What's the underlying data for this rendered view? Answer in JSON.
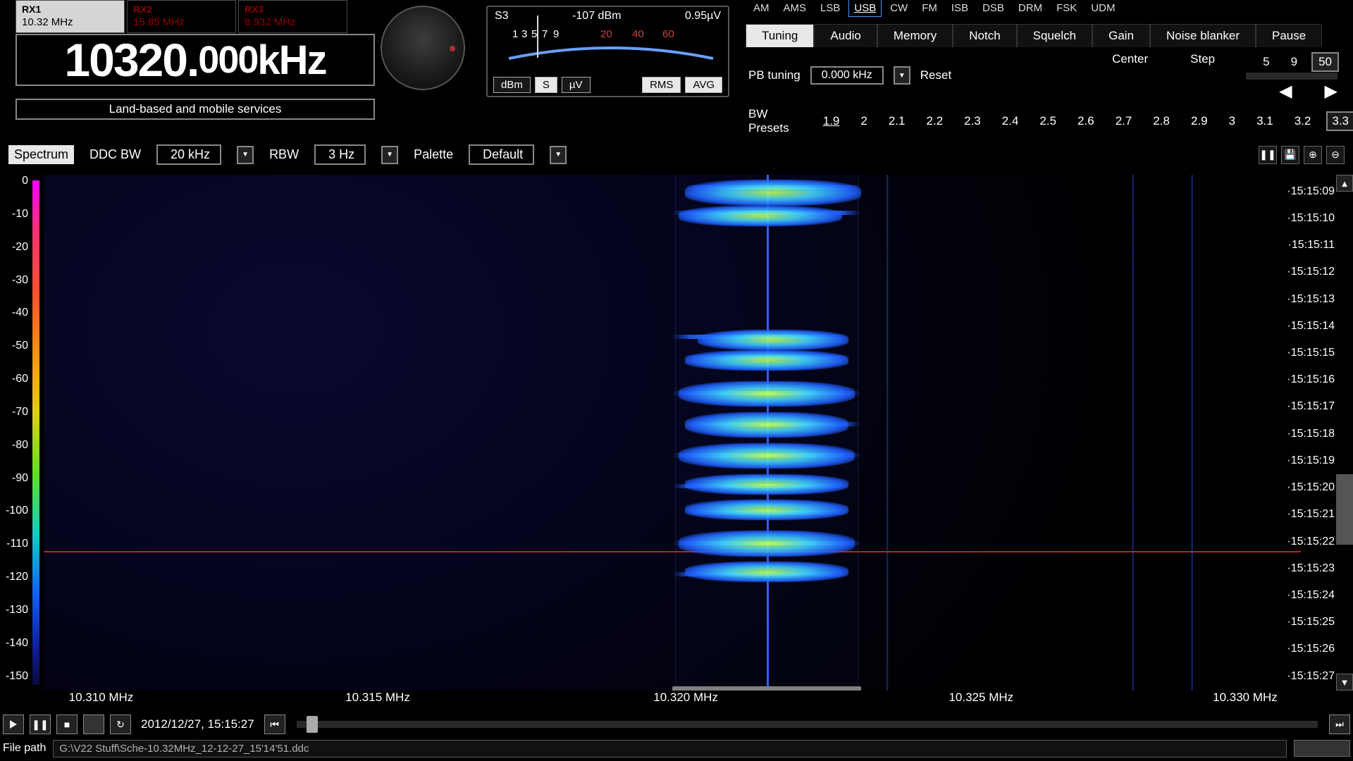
{
  "rx_tabs": [
    {
      "name": "RX1",
      "freq": "10.32 MHz",
      "active": true,
      "red": false
    },
    {
      "name": "RX2",
      "freq": "15.85 MHz",
      "active": false,
      "red": true
    },
    {
      "name": "RX3",
      "freq": "8.932 MHz",
      "active": false,
      "red": true
    }
  ],
  "frequency": {
    "value": "10320.",
    "sub": "000",
    "unit": "kHz"
  },
  "service_label": "Land-based and mobile services",
  "smeter": {
    "s_label": "S3",
    "dbm": "-107 dBm",
    "uv": "0.95µV",
    "ticks_white": [
      "1",
      "3",
      "5",
      "7",
      "9"
    ],
    "ticks_red": [
      "20",
      "40",
      "60"
    ],
    "btns": [
      {
        "t": "dBm",
        "on": false
      },
      {
        "t": "S",
        "on": true
      },
      {
        "t": "µV",
        "on": false
      },
      {
        "t": "RMS",
        "on": true
      },
      {
        "t": "AVG",
        "on": true
      }
    ]
  },
  "modes": [
    "AM",
    "AMS",
    "LSB",
    "USB",
    "CW",
    "FM",
    "ISB",
    "DSB",
    "DRM",
    "FSK",
    "UDM"
  ],
  "mode_selected": "USB",
  "opt_tabs": [
    "Tuning",
    "Audio",
    "Memory",
    "Notch",
    "Squelch",
    "Gain",
    "Noise blanker",
    "Pause"
  ],
  "opt_selected": "Tuning",
  "pb": {
    "label": "PB tuning",
    "value": "0.000 kHz",
    "reset": "Reset"
  },
  "center_step": {
    "center": "Center",
    "step": "Step",
    "vals": [
      "5",
      "9",
      "50"
    ],
    "sel": "50"
  },
  "bw": {
    "label": "BW Presets",
    "vals": [
      "1.9",
      "2",
      "2.1",
      "2.2",
      "2.3",
      "2.4",
      "2.5",
      "2.6",
      "2.7",
      "2.8",
      "2.9",
      "3",
      "3.1",
      "3.2",
      "3.3"
    ],
    "sel": "3.3",
    "under": "1.9"
  },
  "spec_ctrl": {
    "spectrum": "Spectrum",
    "ddc": "DDC BW",
    "ddc_val": "20 kHz",
    "rbw": "RBW",
    "rbw_val": "3 Hz",
    "pal": "Palette",
    "pal_val": "Default"
  },
  "db_scale": {
    "min": -150,
    "max": 0,
    "step": 10,
    "labels": [
      "0",
      "-10",
      "-20",
      "-30",
      "-40",
      "-50",
      "-60",
      "-70",
      "-80",
      "-90",
      "-100",
      "-110",
      "-120",
      "-130",
      "-140",
      "-150"
    ]
  },
  "freq_axis": [
    {
      "t": "10.310 MHz",
      "pct": 2
    },
    {
      "t": "10.315 MHz",
      "pct": 24
    },
    {
      "t": "10.320 MHz",
      "pct": 48.5
    },
    {
      "t": "10.325 MHz",
      "pct": 72
    },
    {
      "t": "10.330 MHz",
      "pct": 93
    }
  ],
  "time_labels": [
    "15:15:09",
    "15:15:10",
    "15:15:11",
    "15:15:12",
    "15:15:13",
    "15:15:14",
    "15:15:15",
    "15:15:16",
    "15:15:17",
    "15:15:18",
    "15:15:19",
    "15:15:20",
    "15:15:21",
    "15:15:22",
    "15:15:23",
    "15:15:24",
    "15:15:25",
    "15:15:26",
    "15:15:27"
  ],
  "signal_blobs": [
    {
      "l": 51,
      "t": 1,
      "w": 14,
      "h": 5
    },
    {
      "l": 50.5,
      "t": 6,
      "w": 13,
      "h": 4
    },
    {
      "l": 52,
      "t": 30,
      "w": 12,
      "h": 4
    },
    {
      "l": 51,
      "t": 34,
      "w": 13,
      "h": 4
    },
    {
      "l": 50.5,
      "t": 40,
      "w": 14,
      "h": 5
    },
    {
      "l": 51,
      "t": 46,
      "w": 13,
      "h": 5
    },
    {
      "l": 50.5,
      "t": 52,
      "w": 14,
      "h": 5
    },
    {
      "l": 51,
      "t": 58,
      "w": 13,
      "h": 4
    },
    {
      "l": 51,
      "t": 63,
      "w": 13,
      "h": 4
    },
    {
      "l": 50.5,
      "t": 69,
      "w": 14,
      "h": 5
    },
    {
      "l": 51,
      "t": 75,
      "w": 13,
      "h": 4
    }
  ],
  "signal_hstreaks": [
    {
      "l": 51,
      "t": 2,
      "w": 14
    },
    {
      "l": 50,
      "t": 7,
      "w": 15
    },
    {
      "l": 50,
      "t": 31,
      "w": 14
    },
    {
      "l": 51,
      "t": 35,
      "w": 13
    },
    {
      "l": 50,
      "t": 42,
      "w": 15
    },
    {
      "l": 51,
      "t": 48,
      "w": 14
    },
    {
      "l": 50,
      "t": 54,
      "w": 15
    },
    {
      "l": 50,
      "t": 60,
      "w": 14
    },
    {
      "l": 51,
      "t": 65,
      "w": 13
    },
    {
      "l": 50,
      "t": 71,
      "w": 15
    },
    {
      "l": 50,
      "t": 77,
      "w": 14
    }
  ],
  "playback": {
    "timestamp": "2012/12/27, 15:15:27"
  },
  "file": {
    "label": "File path",
    "path": "G:\\V22 Stuff\\Sche-10.32MHz_12-12-27_15'14'51.ddc"
  },
  "colors": {
    "accent": "#4a90ff",
    "red": "#d04040"
  }
}
